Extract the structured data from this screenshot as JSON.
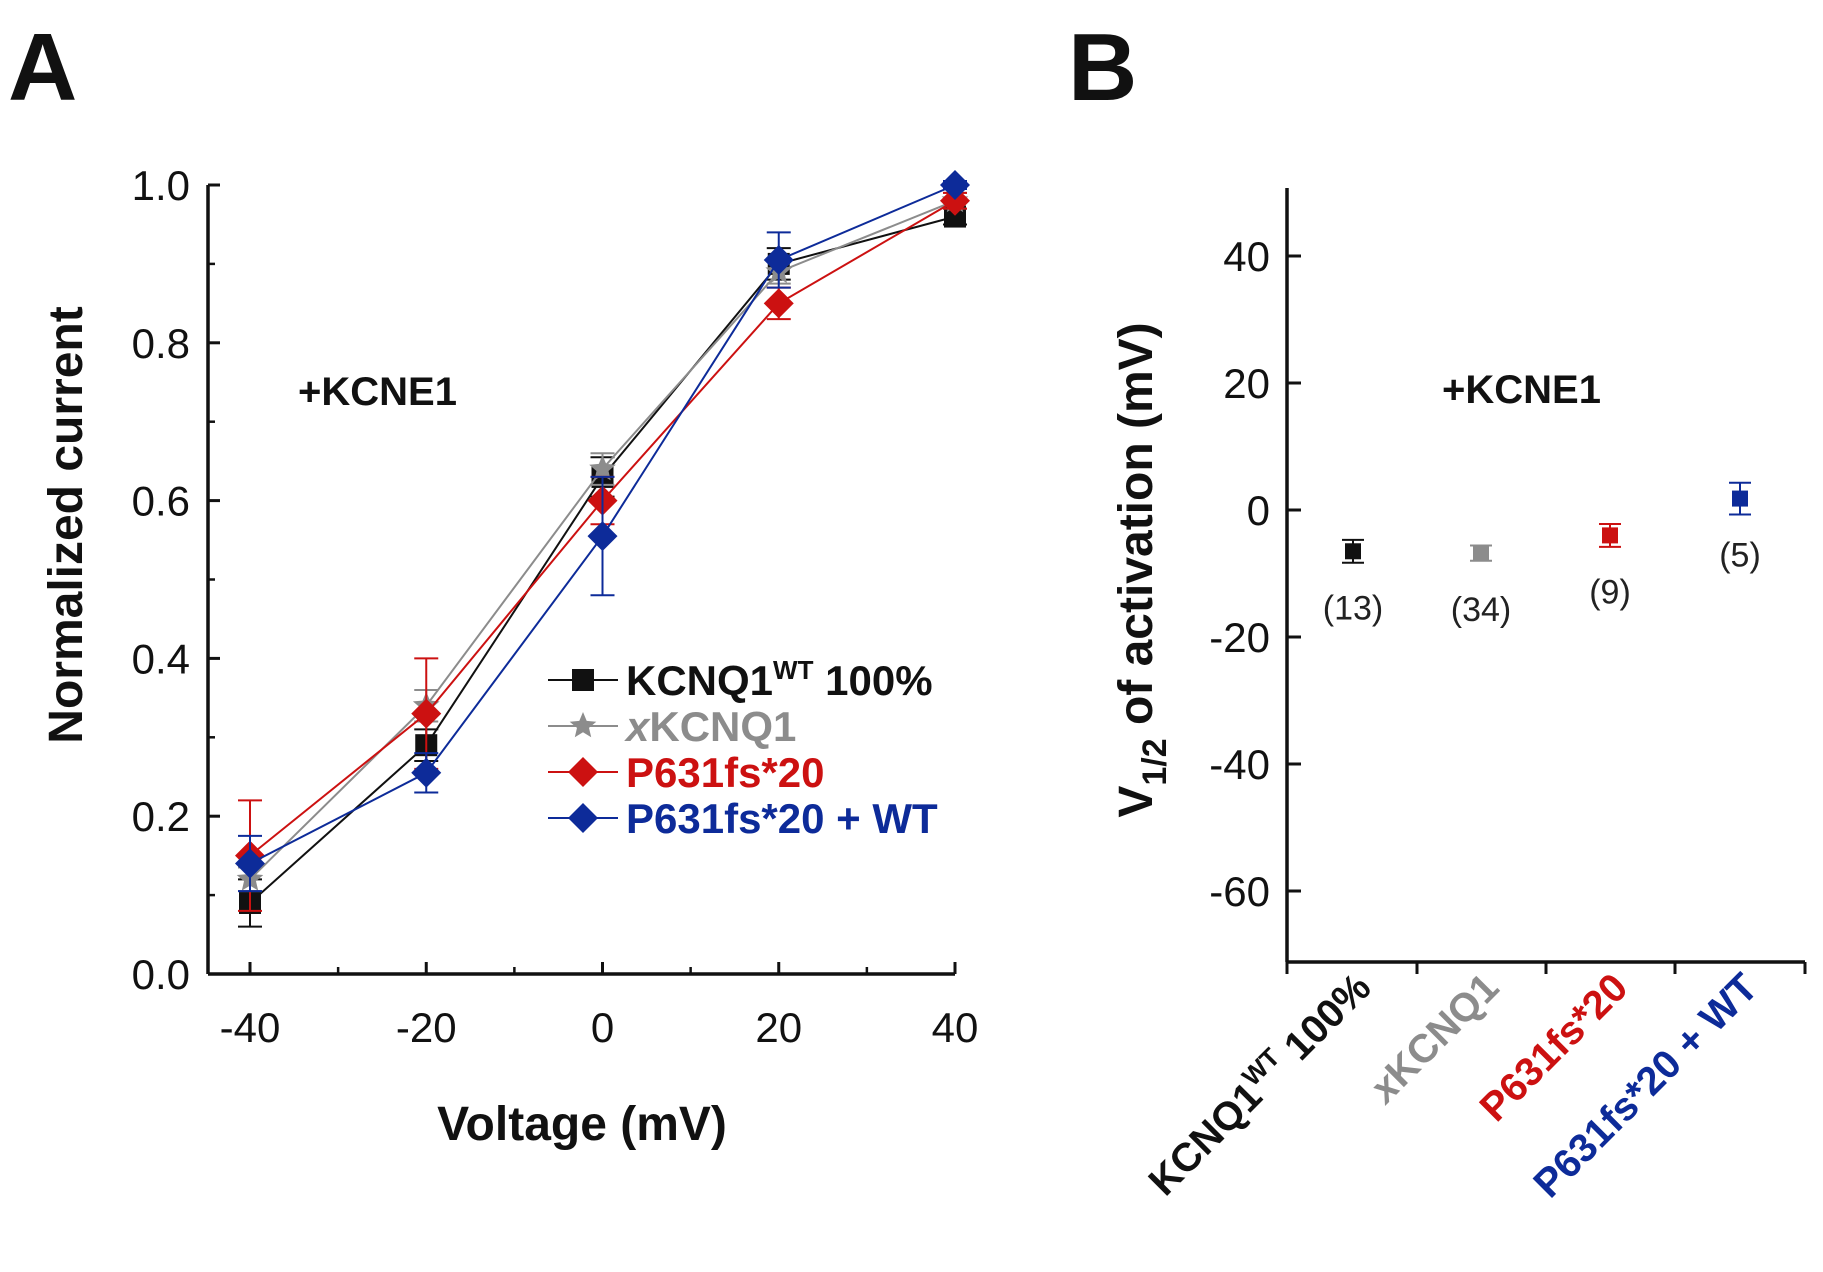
{
  "panels": {
    "a": "A",
    "b": "B"
  },
  "chart_data": [
    {
      "type": "line",
      "xlabel": "Voltage (mV)",
      "ylabel": "Normalized current",
      "xlim": [
        -45,
        45
      ],
      "ylim": [
        0.0,
        1.0
      ],
      "xticks": [
        "-40",
        "-20",
        "0",
        "20",
        "40"
      ],
      "yticks": [
        "0.0",
        "0.2",
        "0.4",
        "0.6",
        "0.8",
        "1.0"
      ],
      "annotation": "+KCNE1",
      "legend_placement": "lower-right",
      "x": [
        -40,
        -20,
        0,
        20,
        40
      ],
      "series": [
        {
          "name_main": "KCNQ1",
          "name_sup": "WT",
          "name_tail": " 100%",
          "color": "#111111",
          "marker": "square",
          "values": [
            0.09,
            0.29,
            0.63,
            0.9,
            0.96
          ],
          "errors": [
            0.03,
            0.02,
            0.025,
            0.02,
            0.01
          ]
        },
        {
          "name_italic": "x",
          "name_main": "KCNQ1",
          "color": "#8c8c8c",
          "marker": "star",
          "values": [
            0.12,
            0.34,
            0.64,
            0.89,
            0.98
          ],
          "errors": [
            0.015,
            0.02,
            0.02,
            0.015,
            0.01
          ]
        },
        {
          "name_main": "P631fs*20",
          "color": "#cc1111",
          "marker": "diamond",
          "values": [
            0.15,
            0.33,
            0.6,
            0.85,
            0.98
          ],
          "errors": [
            0.07,
            0.07,
            0.03,
            0.02,
            0.01
          ]
        },
        {
          "name_main": "P631fs*20 + WT",
          "color": "#0d2b99",
          "marker": "diamond",
          "values": [
            0.14,
            0.255,
            0.555,
            0.905,
            1.0
          ],
          "errors": [
            0.035,
            0.025,
            0.075,
            0.035,
            0.005
          ]
        }
      ]
    },
    {
      "type": "scatter",
      "ylabel_main": "V",
      "ylabel_sub": "1/2",
      "ylabel_tail": " of activation (mV)",
      "ylim": [
        -70,
        50
      ],
      "yticks": [
        "40",
        "20",
        "0",
        "-20",
        "-40",
        "-60"
      ],
      "annotation": "+KCNE1",
      "categories": [
        {
          "main": "KCNQ1",
          "sup": "WT",
          "tail": " 100%",
          "color": "#111111"
        },
        {
          "italic": "x",
          "main": "KCNQ1",
          "color": "#8c8c8c"
        },
        {
          "main": "P631fs*20",
          "color": "#cc1111"
        },
        {
          "main": "P631fs*20 + WT",
          "color": "#0d2b99"
        }
      ],
      "values": [
        -6.5,
        -6.8,
        -4.0,
        1.8
      ],
      "errors": [
        1.8,
        1.2,
        1.8,
        2.5
      ],
      "n_labels": [
        "(13)",
        "(34)",
        "(9)",
        "(5)"
      ]
    }
  ]
}
